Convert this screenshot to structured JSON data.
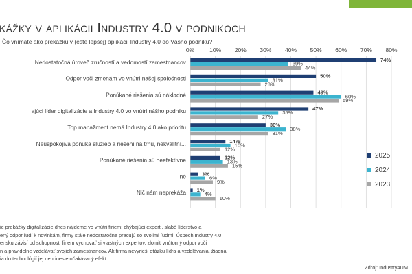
{
  "header": {
    "title": "kážky v aplikácii Industry 4.0 v podnikoch",
    "subtitle": "Čo vnímate ako prekážku v (ešte lepšej) aplikácii Industry 4.0 do Vášho podniku?"
  },
  "footer": {
    "note_lines": [
      "ie prekážky digitalizácie dnes nájdeme vo vnútri firiem: chýbajúci experti, slabé líderstvo a",
      "ený odpor ľudí k novinkám, firmy stále nedostatočne pracujú so svojimi ľuďmi. Úspech Industry 4.0",
      "ensku závisí od schopnosti firiem vychovať si vlastných expertov, zlomiť vnútorný odpor voči",
      "n a pravidelne vzdelávať svojich zamestnancov. Ak firma nevyrieši otázku lídra a vzdelávania, žiadna",
      "ia do technológií jej neprinesie očakávaný efekt."
    ],
    "source": "Zdroj: Industry4UM"
  },
  "colors": {
    "accent": "#7fb539",
    "series_2025": "#1f3f73",
    "series_2024": "#3cb4cf",
    "series_2023": "#a6a6a6"
  },
  "chart_data": {
    "type": "bar",
    "orientation": "horizontal",
    "xlim": [
      0,
      80
    ],
    "x_ticks": [
      "0%",
      "10%",
      "20%",
      "30%",
      "40%",
      "50%",
      "60%",
      "70%",
      "80%"
    ],
    "gridlines": true,
    "legend_position": "right",
    "categories": [
      "Nedostatočná úroveň zručností a vedomostí zamestnancov",
      "Odpor voči zmenám vo vnútri našej spoločnosti",
      "Ponúkané riešenia sú nákladné",
      "ajúci líder digitalizácie a Industry 4.0 vo vnútri nášho podniku",
      "Top manažment nemá Industry 4.0 ako prioritu",
      "Neuspokojivá ponuka služieb a riešení na trhu, nekvalitní...",
      "Ponúkané riešenia sú neefektívne",
      "Iné",
      "Nič nám neprekáža"
    ],
    "series": [
      {
        "name": "2025",
        "color": "#1f3f73",
        "bold_labels": true,
        "values": [
          74,
          50,
          49,
          47,
          30,
          14,
          12,
          3,
          1
        ]
      },
      {
        "name": "2024",
        "color": "#3cb4cf",
        "bold_labels": false,
        "values": [
          39,
          31,
          60,
          35,
          38,
          16,
          13,
          6,
          4
        ]
      },
      {
        "name": "2023",
        "color": "#a6a6a6",
        "bold_labels": false,
        "values": [
          44,
          28,
          59,
          27,
          31,
          12,
          15,
          9,
          10
        ]
      }
    ]
  }
}
